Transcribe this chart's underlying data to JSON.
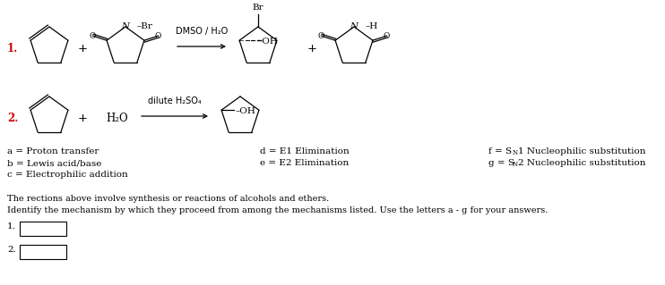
{
  "background_color": "#ffffff",
  "text_color": "#000000",
  "dark_gray": "#333333",
  "r1_label": "1.",
  "r1_reagent": "DMSO / H₂O",
  "r2_label": "2.",
  "r2_reagent": "dilute H₂SO₄",
  "r2_water": "H₂O",
  "legend_a": "a = Proton transfer",
  "legend_b": "b = Lewis acid/base",
  "legend_c": "c = Electrophilic addition",
  "legend_d": "d = E1 Elimination",
  "legend_e": "e = E2 Elimination",
  "paragraph1": "The rections above involve synthesis or reactions of alcohols and ethers.",
  "paragraph2": "Identify the mechanism by which they proceed from among the mechanisms listed. Use the letters a - g for your answers.",
  "box1_label": "1.",
  "box2_label": "2."
}
